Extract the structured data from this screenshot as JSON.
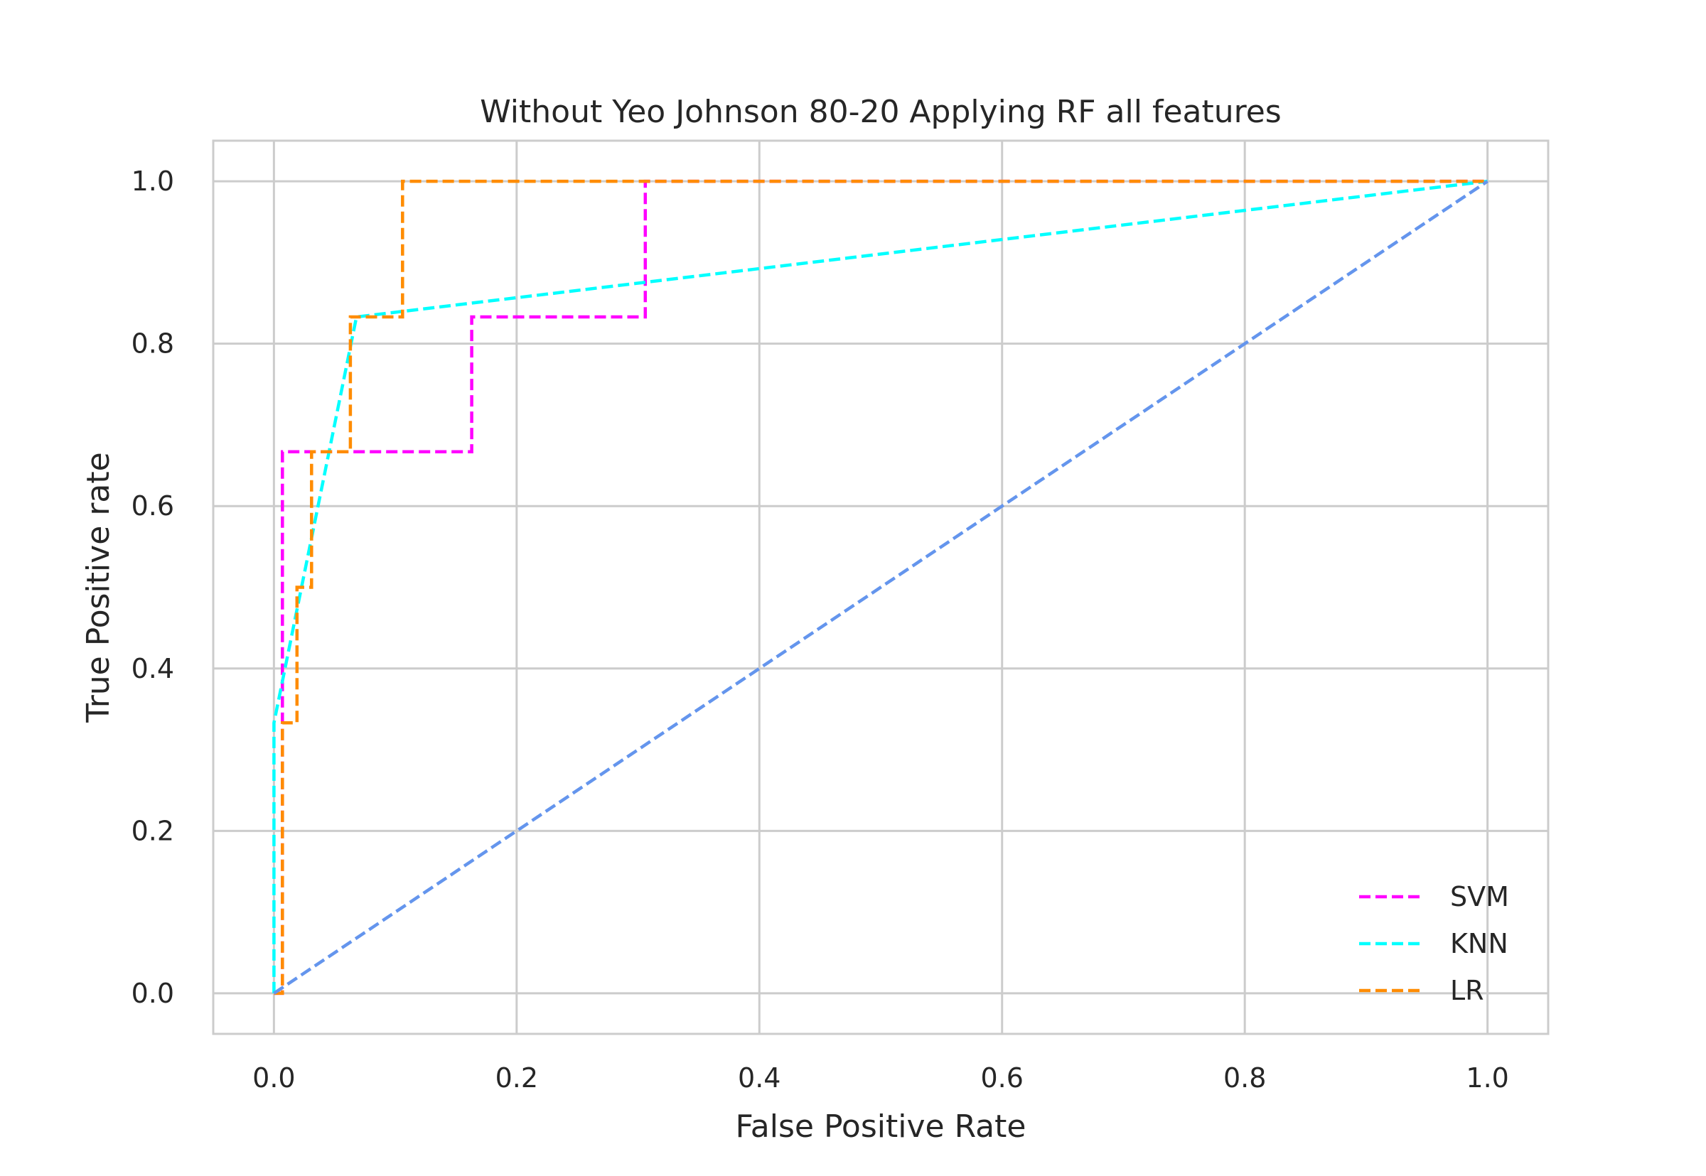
{
  "chart_data": {
    "type": "line",
    "title": "Without Yeo Johnson 80-20 Applying RF all features",
    "xlabel": "False Positive Rate",
    "ylabel": "True Positive rate",
    "xlim": [
      -0.05,
      1.05
    ],
    "ylim": [
      -0.05,
      1.05
    ],
    "x_ticks": [
      0.0,
      0.2,
      0.4,
      0.6,
      0.8,
      1.0
    ],
    "x_tick_labels": [
      "0.0",
      "0.2",
      "0.4",
      "0.6",
      "0.8",
      "1.0"
    ],
    "y_ticks": [
      0.0,
      0.2,
      0.4,
      0.6,
      0.8,
      1.0
    ],
    "y_tick_labels": [
      "0.0",
      "0.2",
      "0.4",
      "0.6",
      "0.8",
      "1.0"
    ],
    "grid": true,
    "legend_position": "lower-right",
    "series": [
      {
        "name": "SVM",
        "color": "#ff00ff",
        "style": "dashed",
        "points": [
          [
            0.0,
            0.0
          ],
          [
            0.007,
            0.0
          ],
          [
            0.007,
            0.667
          ],
          [
            0.163,
            0.667
          ],
          [
            0.163,
            0.833
          ],
          [
            0.306,
            0.833
          ],
          [
            0.306,
            1.0
          ],
          [
            1.0,
            1.0
          ]
        ]
      },
      {
        "name": "KNN",
        "color": "#00ffff",
        "style": "dashed",
        "points": [
          [
            0.0,
            0.0
          ],
          [
            0.0,
            0.333
          ],
          [
            0.068,
            0.833
          ],
          [
            1.0,
            1.0
          ]
        ]
      },
      {
        "name": "LR",
        "color": "#ff8c00",
        "style": "dashed",
        "points": [
          [
            0.0,
            0.0
          ],
          [
            0.007,
            0.0
          ],
          [
            0.007,
            0.333
          ],
          [
            0.019,
            0.333
          ],
          [
            0.019,
            0.5
          ],
          [
            0.031,
            0.5
          ],
          [
            0.031,
            0.667
          ],
          [
            0.063,
            0.667
          ],
          [
            0.063,
            0.833
          ],
          [
            0.106,
            0.833
          ],
          [
            0.106,
            1.0
          ],
          [
            1.0,
            1.0
          ]
        ]
      }
    ],
    "reference_line": {
      "color": "#6495ed",
      "style": "dashed",
      "points": [
        [
          0.0,
          0.0
        ],
        [
          1.0,
          1.0
        ]
      ]
    }
  }
}
